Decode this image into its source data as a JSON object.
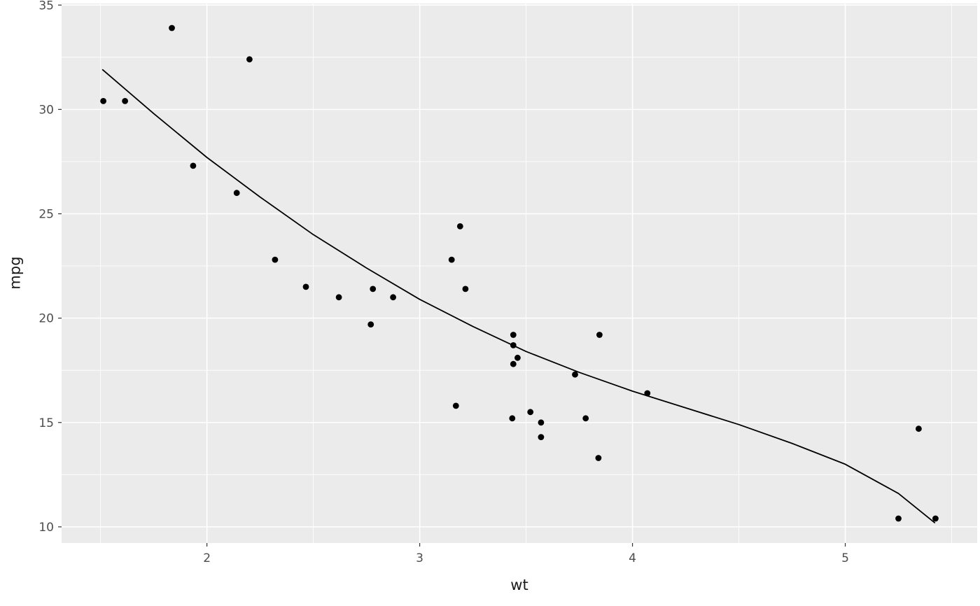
{
  "chart_data": {
    "type": "scatter",
    "title": "",
    "xlabel": "wt",
    "ylabel": "mpg",
    "xlim": [
      1.317,
      5.62
    ],
    "ylim": [
      9.225,
      35.075
    ],
    "x_major_ticks": [
      2,
      3,
      4,
      5
    ],
    "y_major_ticks": [
      10,
      15,
      20,
      25,
      30,
      35
    ],
    "x_minor_ticks": [
      1.5,
      2.5,
      3.5,
      4.5,
      5.5
    ],
    "y_minor_ticks": [
      12.5,
      17.5,
      22.5,
      27.5,
      32.5
    ],
    "grid": true,
    "legend": "none",
    "panel_background": "#EBEBEB",
    "grid_color": "#FFFFFF",
    "tick_color": "#333333",
    "tick_label_color": "#4D4D4D",
    "point_color": "#000000",
    "line_color": "#000000",
    "points": [
      [
        2.62,
        21.0
      ],
      [
        2.875,
        21.0
      ],
      [
        2.32,
        22.8
      ],
      [
        3.215,
        21.4
      ],
      [
        3.44,
        18.7
      ],
      [
        3.46,
        18.1
      ],
      [
        3.57,
        14.3
      ],
      [
        3.19,
        24.4
      ],
      [
        3.15,
        22.8
      ],
      [
        3.44,
        19.2
      ],
      [
        3.44,
        17.8
      ],
      [
        4.07,
        16.4
      ],
      [
        3.73,
        17.3
      ],
      [
        3.78,
        15.2
      ],
      [
        5.25,
        10.4
      ],
      [
        5.424,
        10.4
      ],
      [
        5.345,
        14.7
      ],
      [
        2.2,
        32.4
      ],
      [
        1.615,
        30.4
      ],
      [
        1.835,
        33.9
      ],
      [
        2.465,
        21.5
      ],
      [
        3.52,
        15.5
      ],
      [
        3.435,
        15.2
      ],
      [
        3.84,
        13.3
      ],
      [
        3.845,
        19.2
      ],
      [
        1.935,
        27.3
      ],
      [
        2.14,
        26.0
      ],
      [
        1.513,
        30.4
      ],
      [
        3.17,
        15.8
      ],
      [
        2.77,
        19.7
      ],
      [
        3.57,
        15.0
      ],
      [
        2.78,
        21.4
      ]
    ],
    "smooth_line": {
      "x": [
        1.51,
        1.75,
        2.0,
        2.25,
        2.5,
        2.75,
        3.0,
        3.25,
        3.5,
        3.75,
        4.0,
        4.25,
        4.5,
        4.75,
        5.0,
        5.25,
        5.42
      ],
      "y": [
        31.9,
        29.8,
        27.7,
        25.8,
        24.0,
        22.4,
        20.9,
        19.6,
        18.4,
        17.4,
        16.5,
        15.7,
        14.9,
        14.0,
        13.0,
        11.6,
        10.2
      ]
    }
  }
}
